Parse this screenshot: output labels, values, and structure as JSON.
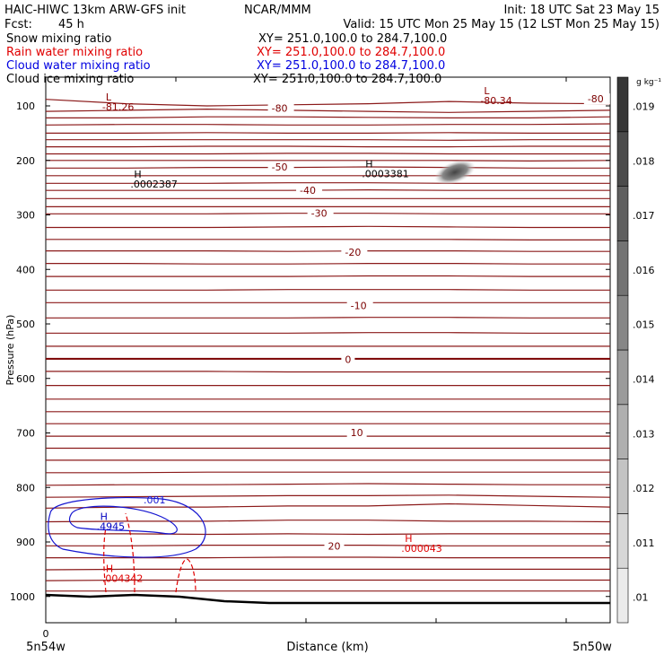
{
  "header": {
    "left_title": "HAIC-HIWC 13km ARW-GFS init",
    "center_title": "NCAR/MMM",
    "init": "Init: 18 UTC Sat 23 May 15",
    "fcst": "Fcst:",
    "fcst_hours": "45 h",
    "valid": "Valid: 15 UTC Mon 25 May 15 (12 LST Mon 25 May 15)"
  },
  "fields": [
    {
      "name": "Snow mixing ratio",
      "xy": "XY= 251.0,100.0 to 284.7,100.0",
      "color": "#000000"
    },
    {
      "name": "Rain water mixing ratio",
      "xy": "XY= 251.0,100.0 to 284.7,100.0",
      "color": "#e00000"
    },
    {
      "name": "Cloud water mixing ratio",
      "xy": "XY= 251.0,100.0 to 284.7,100.0",
      "color": "#0000e0"
    },
    {
      "name": "Cloud ice mixing ratio",
      "xy": "XY= 251.0,100.0 to 284.7,100.0",
      "color": "#000000"
    }
  ],
  "chart_data": {
    "type": "cross-section",
    "ylabel": "Pressure (hPa)",
    "xlabel": "Distance (km)",
    "x_start_label": "5n54w",
    "x_end_label": "5n50w",
    "x_tick_zero": "0",
    "y_ticks": [
      100,
      200,
      300,
      400,
      500,
      600,
      700,
      800,
      900,
      1000
    ],
    "ylim": [
      1050,
      50
    ],
    "colorbar": {
      "unit": "g kg⁻¹",
      "levels": [
        ".01",
        ".011",
        ".012",
        ".013",
        ".014",
        ".015",
        ".016",
        ".017",
        ".018",
        ".019"
      ]
    },
    "isotherm_labels": [
      {
        "text": "-80",
        "p": 104,
        "x": 0.4
      },
      {
        "text": "-80",
        "p": 87,
        "x": 0.96
      },
      {
        "text": "-50",
        "p": 212,
        "x": 0.4
      },
      {
        "text": "-40",
        "p": 255,
        "x": 0.45
      },
      {
        "text": "-30",
        "p": 297,
        "x": 0.47
      },
      {
        "text": "-20",
        "p": 368,
        "x": 0.53
      },
      {
        "text": "-10",
        "p": 466,
        "x": 0.54
      },
      {
        "text": "0",
        "p": 565,
        "x": 0.53
      },
      {
        "text": "10",
        "p": 699,
        "x": 0.54
      },
      {
        "text": "20",
        "p": 907,
        "x": 0.5
      }
    ],
    "extrema": [
      {
        "symbol": "L",
        "value": "-81.26",
        "p": 90,
        "x": 0.1,
        "color": "#8b0000"
      },
      {
        "symbol": "L",
        "value": "-80.34",
        "p": 79,
        "x": 0.77,
        "color": "#8b0000"
      },
      {
        "symbol": "H",
        "value": ".0002387",
        "p": 232,
        "x": 0.15,
        "color": "#000000"
      },
      {
        "symbol": "H",
        "value": ".0003381",
        "p": 213,
        "x": 0.56,
        "color": "#000000"
      },
      {
        "symbol": "H",
        "value": ".4945",
        "p": 860,
        "x": 0.09,
        "color": "#0000c0"
      },
      {
        "symbol": "H",
        "value": ".004342",
        "p": 955,
        "x": 0.1,
        "color": "#e00000"
      },
      {
        "symbol": "H",
        "value": ".000043",
        "p": 900,
        "x": 0.63,
        "color": "#e00000"
      }
    ],
    "cloud_water_contour_label": ".001"
  }
}
